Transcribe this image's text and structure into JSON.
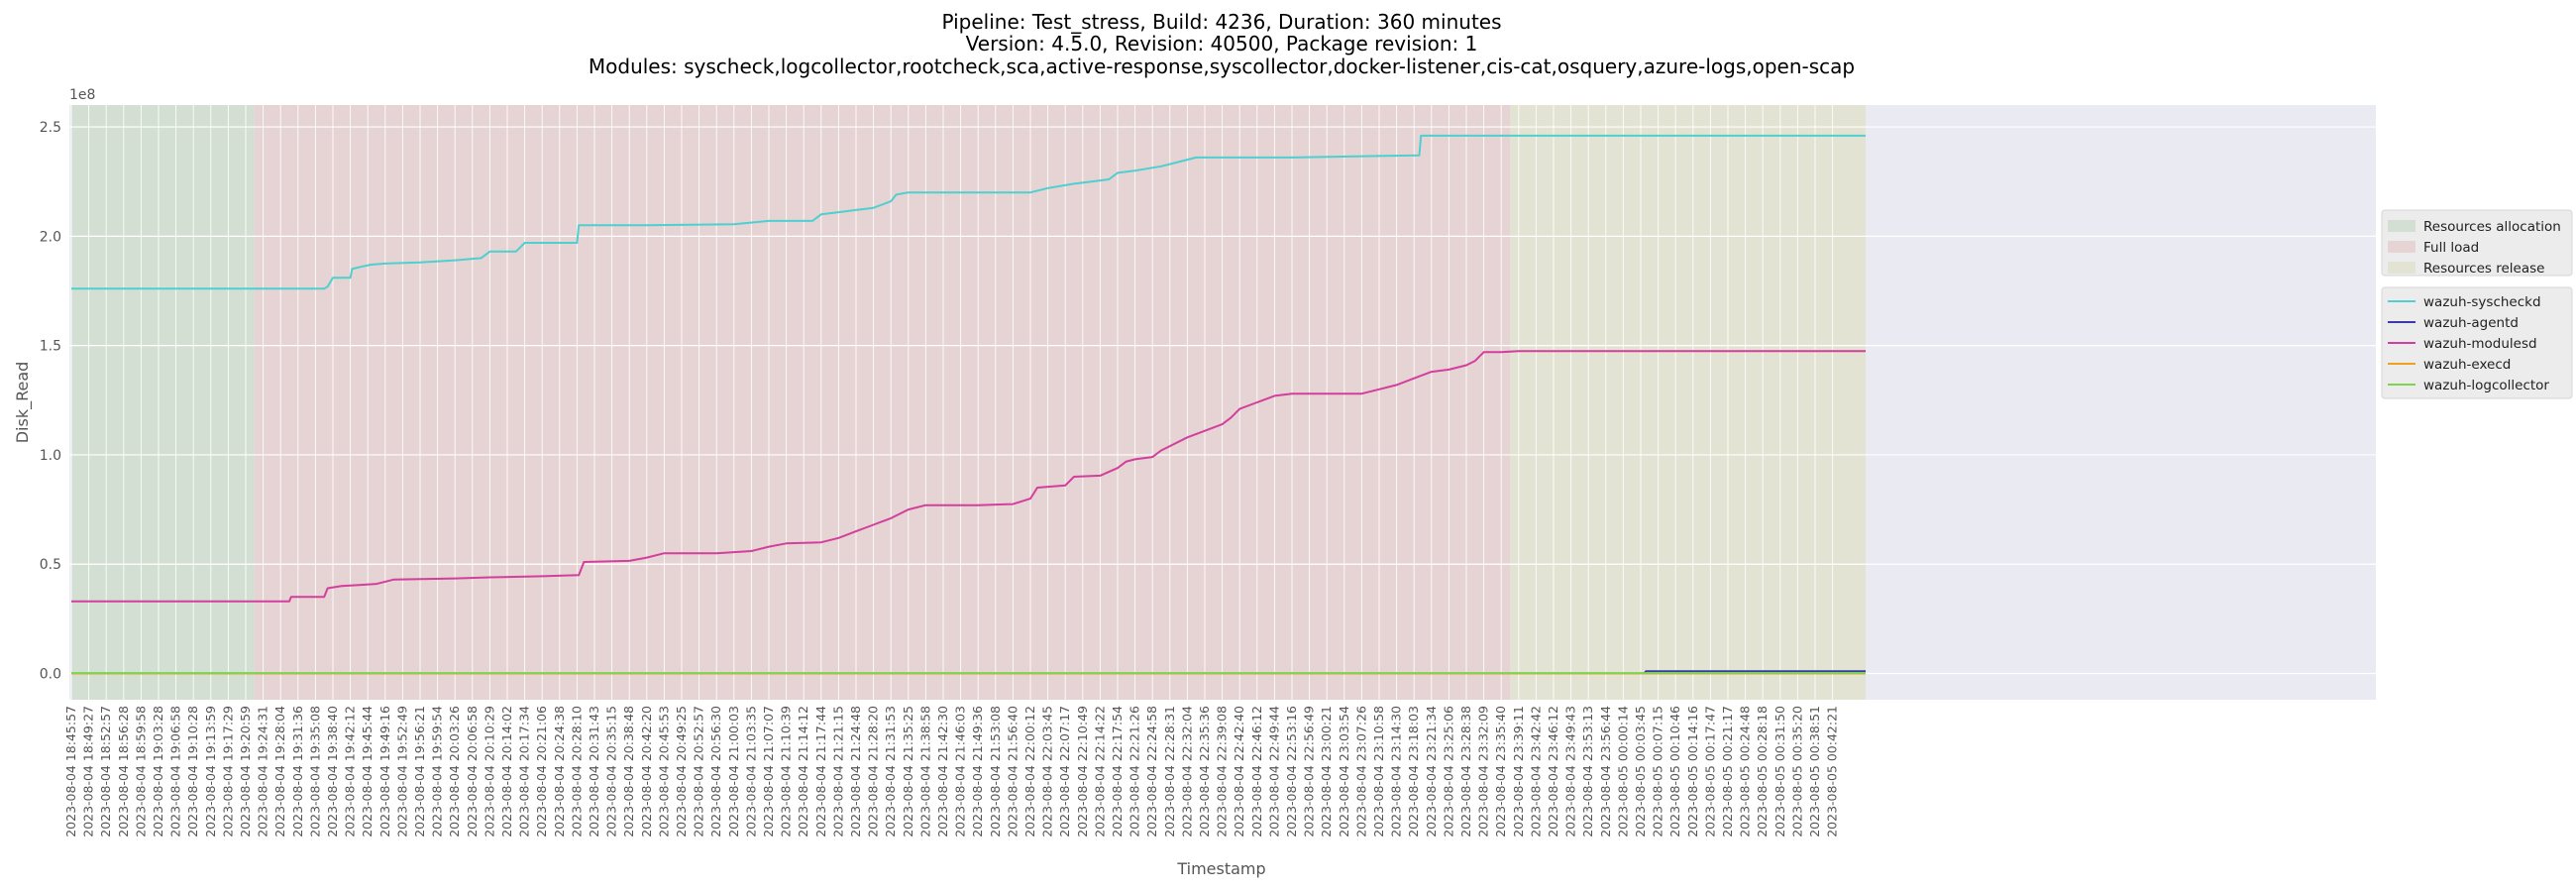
{
  "chart_data": {
    "type": "line",
    "title_lines": [
      "Pipeline: Test_stress, Build: 4236, Duration: 360 minutes",
      "Version: 4.5.0, Revision: 40500, Package revision: 1",
      "Modules: syscheck,logcollector,rootcheck,sca,active-response,syscollector,docker-listener,cis-cat,osquery,azure-logs,open-scap"
    ],
    "xlabel": "Timestamp",
    "ylabel": "Disk_Read",
    "y_offset_label": "1e8",
    "ylim": [
      -12000000.0,
      260000000.0
    ],
    "yticks": [
      0,
      50000000.0,
      100000000.0,
      150000000.0,
      200000000.0,
      250000000.0
    ],
    "ytick_labels": [
      "0.0",
      "0.5",
      "1.0",
      "1.5",
      "2.0",
      "2.5"
    ],
    "grid": true,
    "x_tick_labels": [
      "2023-08-04 18:45:57",
      "2023-08-04 18:49:27",
      "2023-08-04 18:52:57",
      "2023-08-04 18:56:28",
      "2023-08-04 18:59:58",
      "2023-08-04 19:03:28",
      "2023-08-04 19:06:58",
      "2023-08-04 19:10:28",
      "2023-08-04 19:13:59",
      "2023-08-04 19:17:29",
      "2023-08-04 19:20:59",
      "2023-08-04 19:24:31",
      "2023-08-04 19:28:04",
      "2023-08-04 19:31:36",
      "2023-08-04 19:35:08",
      "2023-08-04 19:38:40",
      "2023-08-04 19:42:12",
      "2023-08-04 19:45:44",
      "2023-08-04 19:49:16",
      "2023-08-04 19:52:49",
      "2023-08-04 19:56:21",
      "2023-08-04 19:59:54",
      "2023-08-04 20:03:26",
      "2023-08-04 20:06:58",
      "2023-08-04 20:10:29",
      "2023-08-04 20:14:02",
      "2023-08-04 20:17:34",
      "2023-08-04 20:21:06",
      "2023-08-04 20:24:38",
      "2023-08-04 20:28:10",
      "2023-08-04 20:31:43",
      "2023-08-04 20:35:15",
      "2023-08-04 20:38:48",
      "2023-08-04 20:42:20",
      "2023-08-04 20:45:53",
      "2023-08-04 20:49:25",
      "2023-08-04 20:52:57",
      "2023-08-04 20:56:30",
      "2023-08-04 21:00:03",
      "2023-08-04 21:03:35",
      "2023-08-04 21:07:07",
      "2023-08-04 21:10:39",
      "2023-08-04 21:14:12",
      "2023-08-04 21:17:44",
      "2023-08-04 21:21:15",
      "2023-08-04 21:24:48",
      "2023-08-04 21:28:20",
      "2023-08-04 21:31:53",
      "2023-08-04 21:35:25",
      "2023-08-04 21:38:58",
      "2023-08-04 21:42:30",
      "2023-08-04 21:46:03",
      "2023-08-04 21:49:36",
      "2023-08-04 21:53:08",
      "2023-08-04 21:56:40",
      "2023-08-04 22:00:12",
      "2023-08-04 22:03:45",
      "2023-08-04 22:07:17",
      "2023-08-04 22:10:49",
      "2023-08-04 22:14:22",
      "2023-08-04 22:17:54",
      "2023-08-04 22:21:26",
      "2023-08-04 22:24:58",
      "2023-08-04 22:28:31",
      "2023-08-04 22:32:04",
      "2023-08-04 22:35:36",
      "2023-08-04 22:39:08",
      "2023-08-04 22:42:40",
      "2023-08-04 22:46:12",
      "2023-08-04 22:49:44",
      "2023-08-04 22:53:16",
      "2023-08-04 22:56:49",
      "2023-08-04 23:00:21",
      "2023-08-04 23:03:54",
      "2023-08-04 23:07:26",
      "2023-08-04 23:10:58",
      "2023-08-04 23:14:30",
      "2023-08-04 23:18:03",
      "2023-08-04 23:21:34",
      "2023-08-04 23:25:06",
      "2023-08-04 23:28:38",
      "2023-08-04 23:32:09",
      "2023-08-04 23:35:40",
      "2023-08-04 23:39:11",
      "2023-08-04 23:42:42",
      "2023-08-04 23:46:12",
      "2023-08-04 23:49:43",
      "2023-08-04 23:53:13",
      "2023-08-04 23:56:44",
      "2023-08-05 00:00:14",
      "2023-08-05 00:03:45",
      "2023-08-05 00:07:15",
      "2023-08-05 00:10:46",
      "2023-08-05 00:14:16",
      "2023-08-05 00:17:47",
      "2023-08-05 00:21:17",
      "2023-08-05 00:24:48",
      "2023-08-05 00:28:18",
      "2023-08-05 00:31:50",
      "2023-08-05 00:35:20",
      "2023-08-05 00:38:51",
      "2023-08-05 00:42:21"
    ],
    "phases": [
      {
        "name": "Resources allocation",
        "start_index": 0,
        "end_index": 10.5,
        "color": "#d3dfd3"
      },
      {
        "name": "Full load",
        "start_index": 10.5,
        "end_index": 82.5,
        "color": "#e6d3d3"
      },
      {
        "name": "Resources release",
        "start_index": 82.5,
        "end_index": 102.9,
        "color": "#e3e3d3"
      }
    ],
    "series": [
      {
        "name": "wazuh-syscheckd",
        "color": "#4fcfcf",
        "points": [
          [
            0,
            176000000.0
          ],
          [
            14.5,
            176000000.0
          ],
          [
            14.7,
            177000000.0
          ],
          [
            15,
            181000000.0
          ],
          [
            16,
            181000000.0
          ],
          [
            16.1,
            185000000.0
          ],
          [
            16.6,
            186000000.0
          ],
          [
            17.2,
            187000000.0
          ],
          [
            18,
            187500000.0
          ],
          [
            20,
            188000000.0
          ],
          [
            22,
            189000000.0
          ],
          [
            23.5,
            190000000.0
          ],
          [
            24,
            193000000.0
          ],
          [
            25.5,
            193000000.0
          ],
          [
            26,
            197000000.0
          ],
          [
            29,
            197000000.0
          ],
          [
            29.1,
            205000000.0
          ],
          [
            33,
            205000000.0
          ],
          [
            38,
            205500000.0
          ],
          [
            40,
            207000000.0
          ],
          [
            42.5,
            207000000.0
          ],
          [
            43,
            210000000.0
          ],
          [
            44,
            211000000.0
          ],
          [
            45,
            212000000.0
          ],
          [
            46,
            213000000.0
          ],
          [
            47,
            216000000.0
          ],
          [
            47.3,
            219000000.0
          ],
          [
            48,
            220000000.0
          ],
          [
            55,
            220000000.0
          ],
          [
            56,
            222000000.0
          ],
          [
            57.5,
            224000000.0
          ],
          [
            58.5,
            225000000.0
          ],
          [
            59.5,
            226000000.0
          ],
          [
            60,
            229000000.0
          ],
          [
            61,
            230000000.0
          ],
          [
            62.5,
            232000000.0
          ],
          [
            63.5,
            234000000.0
          ],
          [
            64.5,
            236000000.0
          ],
          [
            70,
            236000000.0
          ],
          [
            77.3,
            237000000.0
          ],
          [
            77.4,
            246000000.0
          ],
          [
            102.9,
            246000000.0
          ]
        ]
      },
      {
        "name": "wazuh-agentd",
        "color": "#3a3aa8",
        "points": [
          [
            0,
            0
          ],
          [
            90.2,
            0
          ],
          [
            90.3,
            1000000.0
          ],
          [
            102.9,
            1000000.0
          ]
        ]
      },
      {
        "name": "wazuh-modulesd",
        "color": "#d23f9c",
        "points": [
          [
            0,
            33000000.0
          ],
          [
            12.5,
            33000000.0
          ],
          [
            12.6,
            35000000.0
          ],
          [
            14.5,
            35000000.0
          ],
          [
            14.7,
            39000000.0
          ],
          [
            15.5,
            40000000.0
          ],
          [
            16.5,
            40500000.0
          ],
          [
            17.5,
            41000000.0
          ],
          [
            18.5,
            43000000.0
          ],
          [
            22,
            43500000.0
          ],
          [
            24,
            44000000.0
          ],
          [
            27,
            44500000.0
          ],
          [
            29.1,
            45000000.0
          ],
          [
            29.2,
            47000000.0
          ],
          [
            29.4,
            51000000.0
          ],
          [
            32,
            51500000.0
          ],
          [
            33,
            53000000.0
          ],
          [
            34,
            55000000.0
          ],
          [
            37,
            55000000.0
          ],
          [
            39,
            56000000.0
          ],
          [
            40,
            58000000.0
          ],
          [
            41,
            59500000.0
          ],
          [
            43,
            60000000.0
          ],
          [
            44,
            62000000.0
          ],
          [
            45,
            65000000.0
          ],
          [
            46,
            68000000.0
          ],
          [
            47,
            71000000.0
          ],
          [
            48,
            75000000.0
          ],
          [
            49,
            77000000.0
          ],
          [
            52,
            77000000.0
          ],
          [
            54,
            77500000.0
          ],
          [
            55,
            80000000.0
          ],
          [
            55.4,
            85000000.0
          ],
          [
            57,
            86000000.0
          ],
          [
            57.5,
            90000000.0
          ],
          [
            59,
            90500000.0
          ],
          [
            60,
            94000000.0
          ],
          [
            60.5,
            97000000.0
          ],
          [
            61,
            98000000.0
          ],
          [
            62,
            99000000.0
          ],
          [
            62.5,
            102000000.0
          ],
          [
            63,
            104000000.0
          ],
          [
            64,
            108000000.0
          ],
          [
            65,
            111000000.0
          ],
          [
            66,
            114000000.0
          ],
          [
            66.5,
            117000000.0
          ],
          [
            67,
            121000000.0
          ],
          [
            68,
            124000000.0
          ],
          [
            69,
            127000000.0
          ],
          [
            70,
            128000000.0
          ],
          [
            74,
            128000000.0
          ],
          [
            75,
            130000000.0
          ],
          [
            76,
            132000000.0
          ],
          [
            77,
            135000000.0
          ],
          [
            78,
            138000000.0
          ],
          [
            79,
            139000000.0
          ],
          [
            80,
            141000000.0
          ],
          [
            80.5,
            143000000.0
          ],
          [
            81,
            147000000.0
          ],
          [
            82,
            147000000.0
          ],
          [
            83,
            147500000.0
          ],
          [
            102.9,
            147500000.0
          ]
        ]
      },
      {
        "name": "wazuh-execd",
        "color": "#f0a020",
        "points": [
          [
            0,
            0
          ],
          [
            102.9,
            0
          ]
        ]
      },
      {
        "name": "wazuh-logcollector",
        "color": "#7fd34e",
        "points": [
          [
            0,
            200000.0
          ],
          [
            102.9,
            200000.0
          ]
        ]
      }
    ]
  }
}
